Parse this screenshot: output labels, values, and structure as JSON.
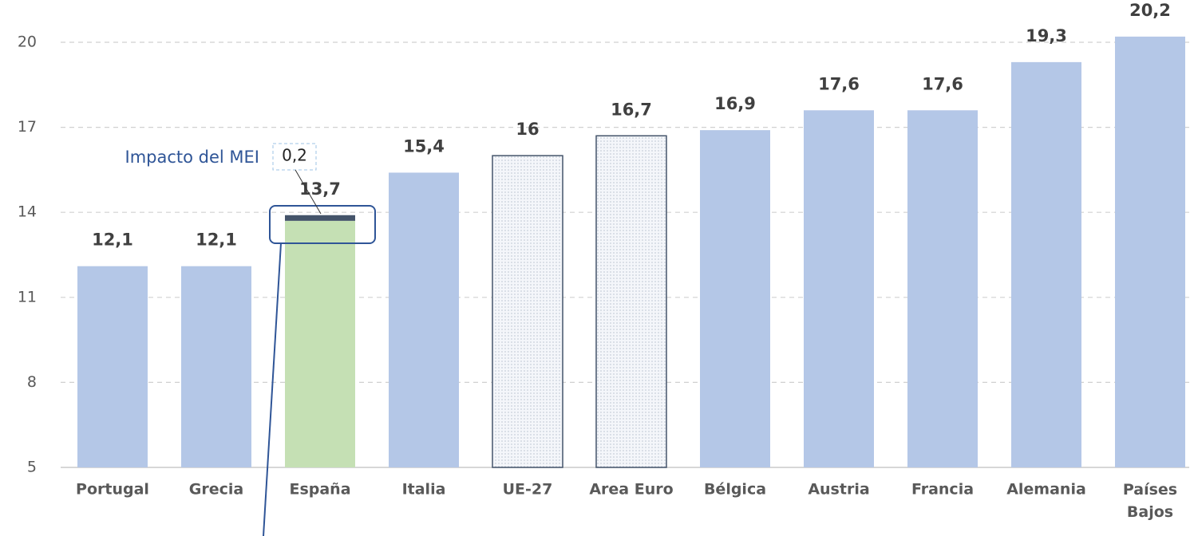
{
  "chart_data": {
    "type": "bar",
    "categories": [
      "Portugal",
      "Grecia",
      "España",
      "Italia",
      "UE-27",
      "Area Euro",
      "Bélgica",
      "Austria",
      "Francia",
      "Alemania",
      "Países Bajos"
    ],
    "series": [
      {
        "values": [
          12.1,
          12.1,
          13.7,
          15.4,
          16,
          16.7,
          16.9,
          17.6,
          17.6,
          19.3,
          20.2
        ],
        "value_labels": [
          "12,1",
          "12,1",
          "13,7",
          "15,4",
          "16",
          "16,7",
          "16,9",
          "17,6",
          "17,6",
          "19,3",
          "20,2"
        ],
        "colors": [
          "#b4c7e7",
          "#b4c7e7",
          "#c5e0b4",
          "#b4c7e7",
          "#f4f6fa",
          "#f4f6fa",
          "#b4c7e7",
          "#b4c7e7",
          "#b4c7e7",
          "#b4c7e7",
          "#b4c7e7"
        ],
        "fills": [
          "solid",
          "solid",
          "solid",
          "solid",
          "dotted",
          "dotted",
          "solid",
          "solid",
          "solid",
          "solid",
          "solid"
        ]
      },
      {
        "name": "Impacto del MEI",
        "color": "#44546a",
        "values": [
          null,
          null,
          0.2,
          null,
          null,
          null,
          null,
          null,
          null,
          null,
          null
        ],
        "value_labels": [
          null,
          null,
          "0,2",
          null,
          null,
          null,
          null,
          null,
          null,
          null,
          null
        ]
      }
    ],
    "ylim": [
      5,
      20
    ],
    "yticks": [
      5,
      8,
      11,
      14,
      17,
      20
    ],
    "grid": true
  }
}
